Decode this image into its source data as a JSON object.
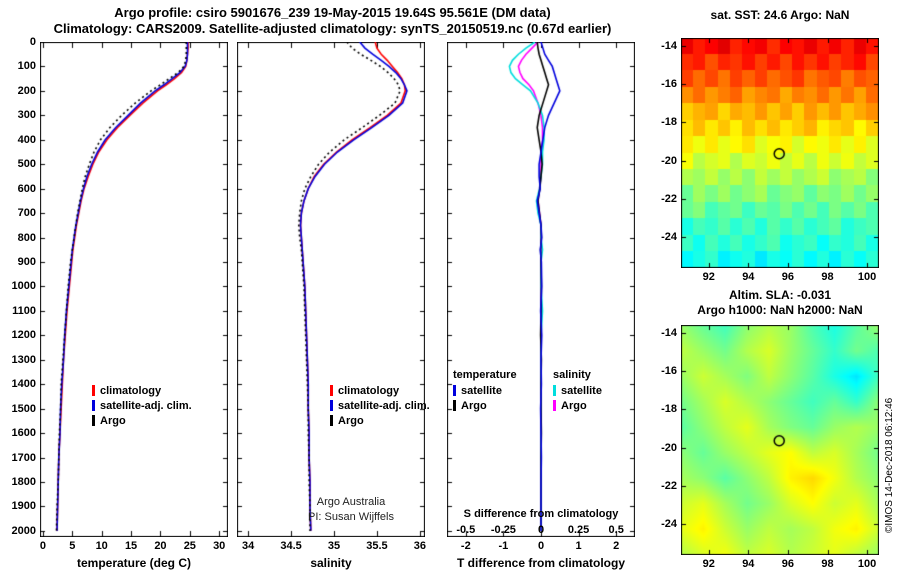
{
  "figure": {
    "title1": "Argo profile: csiro 5901676_239 19-May-2015 19.64S 95.561E (DM data)",
    "title2": "Climatology: CARS2009. Satellite-adjusted climatology: synTS_20150519.nc (0.67d earlier)",
    "copyright": "©IMOS 14-Dec-2018 06:12:46"
  },
  "colors": {
    "climatology": "#ff0000",
    "satellite": "#0000dd",
    "argo": "#000000",
    "salinity_satellite": "#00dddd",
    "salinity_argo": "#ff00ff"
  },
  "chart_data": [
    {
      "id": "temperature-profile",
      "type": "line",
      "xlabel": "temperature (deg C)",
      "xlim": [
        -0.5,
        31.5
      ],
      "xticks": [
        0,
        5,
        10,
        15,
        20,
        25,
        30
      ],
      "ylim": [
        0,
        2025
      ],
      "yticks": [
        0,
        100,
        200,
        300,
        400,
        500,
        600,
        700,
        800,
        900,
        1000,
        1100,
        1200,
        1300,
        1400,
        1500,
        1600,
        1700,
        1800,
        1900,
        2000
      ],
      "legend": [
        {
          "label": "climatology",
          "color": "#ff0000"
        },
        {
          "label": "satellite-adj. clim.",
          "color": "#0000dd"
        },
        {
          "label": "Argo",
          "color": "#000000"
        }
      ],
      "depths": [
        0,
        25,
        50,
        75,
        100,
        125,
        150,
        175,
        200,
        250,
        300,
        350,
        400,
        450,
        500,
        550,
        600,
        650,
        700,
        750,
        800,
        850,
        900,
        1000,
        1100,
        1200,
        1300,
        1400,
        1500,
        1600,
        1700,
        1800,
        1900,
        2000
      ],
      "series": [
        {
          "name": "climatology",
          "color": "#ff0000",
          "style": "solid",
          "values": [
            24.7,
            24.7,
            24.6,
            24.5,
            24.3,
            23.6,
            22.4,
            21.0,
            19.5,
            17.0,
            14.8,
            12.7,
            10.9,
            9.5,
            8.5,
            7.7,
            7.0,
            6.5,
            6.1,
            5.7,
            5.4,
            5.1,
            4.9,
            4.5,
            4.1,
            3.8,
            3.5,
            3.3,
            3.1,
            2.9,
            2.7,
            2.6,
            2.5,
            2.4
          ]
        },
        {
          "name": "satellite-adj. clim.",
          "color": "#0000dd",
          "style": "solid",
          "values": [
            24.6,
            24.6,
            24.6,
            24.5,
            24.2,
            23.3,
            22.0,
            20.6,
            19.1,
            16.6,
            14.5,
            12.4,
            10.6,
            9.3,
            8.3,
            7.5,
            6.9,
            6.4,
            6.0,
            5.6,
            5.3,
            5.0,
            4.8,
            4.4,
            4.0,
            3.7,
            3.5,
            3.2,
            3.0,
            2.9,
            2.7,
            2.6,
            2.5,
            2.4
          ]
        },
        {
          "name": "Argo",
          "color": "#000000",
          "style": "dotted",
          "values": [
            24.4,
            24.4,
            24.4,
            24.3,
            24.0,
            23.0,
            21.5,
            20.0,
            18.4,
            15.7,
            13.4,
            11.4,
            9.8,
            8.7,
            7.9,
            7.2,
            6.7,
            6.3,
            5.9,
            5.6,
            5.3,
            5.0,
            4.7,
            4.3,
            4.0,
            3.7,
            3.4,
            3.1,
            3.0,
            2.8,
            2.7,
            2.6,
            2.4,
            2.3
          ]
        }
      ]
    },
    {
      "id": "salinity-profile",
      "type": "line",
      "xlabel": "salinity",
      "xlim": [
        33.87,
        36.06
      ],
      "xticks": [
        34,
        34.5,
        35,
        35.5,
        36
      ],
      "ylim": [
        0,
        2025
      ],
      "yticks": [
        0,
        100,
        200,
        300,
        400,
        500,
        600,
        700,
        800,
        900,
        1000,
        1100,
        1200,
        1300,
        1400,
        1500,
        1600,
        1700,
        1800,
        1900,
        2000
      ],
      "note1": "Argo Australia",
      "note2": "PI: Susan Wijffels",
      "legend": [
        {
          "label": "climatology",
          "color": "#ff0000"
        },
        {
          "label": "satellite-adj. clim.",
          "color": "#0000dd"
        },
        {
          "label": "Argo",
          "color": "#000000"
        }
      ],
      "depths": [
        0,
        25,
        50,
        75,
        100,
        125,
        150,
        175,
        200,
        250,
        300,
        350,
        400,
        450,
        500,
        550,
        600,
        650,
        700,
        750,
        800,
        850,
        900,
        1000,
        1100,
        1200,
        1300,
        1400,
        1500,
        1600,
        1700,
        1800,
        1900,
        2000
      ],
      "series": [
        {
          "name": "climatology",
          "color": "#ff0000",
          "style": "solid",
          "values": [
            35.48,
            35.5,
            35.55,
            35.62,
            35.68,
            35.74,
            35.79,
            35.82,
            35.83,
            35.78,
            35.62,
            35.42,
            35.21,
            35.03,
            34.88,
            34.77,
            34.7,
            34.65,
            34.62,
            34.61,
            34.62,
            34.63,
            34.64,
            34.66,
            34.67,
            34.68,
            34.69,
            34.7,
            34.7,
            34.71,
            34.71,
            34.72,
            34.72,
            34.73
          ]
        },
        {
          "name": "satellite-adj. clim.",
          "color": "#0000dd",
          "style": "solid",
          "values": [
            35.3,
            35.36,
            35.45,
            35.55,
            35.64,
            35.72,
            35.78,
            35.82,
            35.85,
            35.8,
            35.64,
            35.44,
            35.23,
            35.04,
            34.89,
            34.78,
            34.7,
            34.65,
            34.62,
            34.61,
            34.62,
            34.63,
            34.64,
            34.66,
            34.67,
            34.68,
            34.69,
            34.7,
            34.7,
            34.71,
            34.71,
            34.72,
            34.72,
            34.73
          ]
        },
        {
          "name": "Argo",
          "color": "#000000",
          "style": "dotted",
          "values": [
            35.15,
            35.21,
            35.31,
            35.43,
            35.54,
            35.63,
            35.7,
            35.75,
            35.77,
            35.71,
            35.53,
            35.33,
            35.12,
            34.95,
            34.82,
            34.73,
            34.66,
            34.62,
            34.6,
            34.59,
            34.6,
            34.62,
            34.63,
            34.65,
            34.66,
            34.67,
            34.68,
            34.69,
            34.7,
            34.7,
            34.71,
            34.71,
            34.72,
            34.72
          ]
        }
      ]
    },
    {
      "id": "difference-profile",
      "type": "line",
      "xlabel": "T difference from climatology",
      "xlabel_top": "S difference from climatology",
      "xlim": [
        -2.5,
        2.5
      ],
      "xticks": [
        -2,
        -1,
        0,
        1,
        2
      ],
      "s_ticks": [
        "-0.5",
        "-0.25",
        "0",
        "0.25",
        "0.5"
      ],
      "s_scale_factor": 4,
      "ylim": [
        0,
        2025
      ],
      "yticks": [
        0,
        100,
        200,
        300,
        400,
        500,
        600,
        700,
        800,
        900,
        1000,
        1100,
        1200,
        1300,
        1400,
        1500,
        1600,
        1700,
        1800,
        1900,
        2000
      ],
      "legends": [
        {
          "title": "temperature",
          "entries": [
            {
              "label": "satellite",
              "color": "#0000dd"
            },
            {
              "label": "Argo",
              "color": "#000000"
            }
          ]
        },
        {
          "title": "salinity",
          "entries": [
            {
              "label": "satellite",
              "color": "#00dddd"
            },
            {
              "label": "Argo",
              "color": "#ff00ff"
            }
          ]
        }
      ],
      "depths": [
        0,
        25,
        50,
        75,
        100,
        125,
        150,
        175,
        200,
        250,
        300,
        350,
        400,
        450,
        500,
        550,
        600,
        650,
        700,
        750,
        800,
        850,
        900,
        1000,
        1100,
        1200,
        1300,
        1400,
        1500,
        1600,
        1700,
        1800,
        1900,
        2000
      ],
      "series": [
        {
          "name": "salinity Argo",
          "color": "#ff00ff",
          "style": "solid",
          "scale": "S",
          "values": [
            -0.02,
            -0.06,
            -0.1,
            -0.13,
            -0.15,
            -0.14,
            -0.12,
            -0.08,
            -0.05,
            -0.02,
            0.0,
            0.01,
            0.01,
            0.0,
            0.0,
            0.0,
            -0.01,
            -0.02,
            -0.01,
            0.0,
            0.0,
            0.0,
            0.0,
            0.0,
            0.0,
            0.0,
            0.0,
            0.0,
            0.0,
            0.0,
            0.0,
            0.0,
            0.0,
            0.0
          ]
        },
        {
          "name": "salinity satellite",
          "color": "#00dddd",
          "style": "solid",
          "scale": "S",
          "values": [
            -0.04,
            -0.1,
            -0.15,
            -0.19,
            -0.21,
            -0.2,
            -0.17,
            -0.12,
            -0.07,
            -0.02,
            0.01,
            0.02,
            0.02,
            0.01,
            0.01,
            0.0,
            -0.01,
            -0.03,
            -0.02,
            0.0,
            0.0,
            0.01,
            0.0,
            0.0,
            0.01,
            0.0,
            0.0,
            0.0,
            0.0,
            0.0,
            0.0,
            0.0,
            0.0,
            0.0
          ]
        },
        {
          "name": "temperature Argo",
          "color": "#000000",
          "style": "solid",
          "scale": "T",
          "values": [
            -0.1,
            -0.08,
            -0.05,
            0.0,
            0.05,
            0.1,
            0.15,
            0.2,
            0.15,
            0.05,
            -0.05,
            -0.1,
            -0.05,
            0.0,
            0.03,
            0.0,
            -0.03,
            -0.08,
            -0.04,
            0.0,
            0.01,
            -0.01,
            0.0,
            0.01,
            0.0,
            -0.01,
            0.01,
            0.0,
            0.0,
            0.01,
            0.0,
            0.0,
            0.0,
            0.0
          ]
        },
        {
          "name": "temperature satellite",
          "color": "#0000dd",
          "style": "solid",
          "scale": "T",
          "values": [
            0.0,
            0.05,
            0.1,
            0.2,
            0.3,
            0.35,
            0.4,
            0.45,
            0.5,
            0.35,
            0.2,
            0.1,
            0.05,
            0.0,
            -0.05,
            -0.05,
            -0.02,
            -0.1,
            -0.05,
            0.0,
            0.02,
            -0.02,
            0.01,
            0.02,
            -0.01,
            0.02,
            0.0,
            0.01,
            -0.01,
            0.0,
            0.01,
            0.0,
            0.0,
            0.0
          ]
        }
      ]
    },
    {
      "id": "sst-map",
      "type": "heatmap",
      "title": "sat. SST: 24.6 Argo: NaN",
      "render": "blocky",
      "xlim": [
        90.6,
        100.6
      ],
      "ylim": [
        -13.6,
        -25.6
      ],
      "xticks": [
        92,
        94,
        96,
        98,
        100
      ],
      "yticks": [
        -14,
        -16,
        -18,
        -20,
        -22,
        -24
      ],
      "vmin": 18.1,
      "vmax": 29.4,
      "marker": {
        "lon": 95.561,
        "lat": -19.64
      },
      "values": [
        [
          28.2,
          27.7,
          28.0,
          28.3,
          27.6,
          27.9,
          28.1,
          27.5,
          28.0,
          27.8,
          28.2,
          27.7,
          28.1,
          27.6,
          28.2,
          27.8
        ],
        [
          27.5,
          27.7,
          27.1,
          27.6,
          27.4,
          27.8,
          27.3,
          27.7,
          27.2,
          27.8,
          27.4,
          27.8,
          27.3,
          27.6,
          27.9,
          27.2
        ],
        [
          27.3,
          26.8,
          27.2,
          26.7,
          27.3,
          26.9,
          27.3,
          26.8,
          27.1,
          27.4,
          26.7,
          27.0,
          27.2,
          26.6,
          27.1,
          26.9
        ],
        [
          26.4,
          26.8,
          26.3,
          26.6,
          26.9,
          26.2,
          26.5,
          26.7,
          26.1,
          26.6,
          26.4,
          26.8,
          26.3,
          26.7,
          26.2,
          26.8
        ],
        [
          25.7,
          26.0,
          26.2,
          25.6,
          26.1,
          25.9,
          26.3,
          25.8,
          26.2,
          25.7,
          26.3,
          25.9,
          26.3,
          25.8,
          26.1,
          26.4
        ],
        [
          25.5,
          25.9,
          25.4,
          25.8,
          25.3,
          25.9,
          25.5,
          25.9,
          25.4,
          25.7,
          26.0,
          25.3,
          25.6,
          25.8,
          25.2,
          25.7
        ],
        [
          25.4,
          25.0,
          25.4,
          24.9,
          25.2,
          25.5,
          24.8,
          25.1,
          25.3,
          24.7,
          25.2,
          25.0,
          25.4,
          24.9,
          25.3,
          24.8
        ],
        [
          25.1,
          24.4,
          24.7,
          24.9,
          24.3,
          24.8,
          24.6,
          25.0,
          24.5,
          24.9,
          24.4,
          25.0,
          24.6,
          25.0,
          24.5,
          24.8
        ],
        [
          24.3,
          24.1,
          24.5,
          24.0,
          24.4,
          23.9,
          24.5,
          24.1,
          24.5,
          24.0,
          24.3,
          24.6,
          23.9,
          24.2,
          24.4,
          23.8
        ],
        [
          23.5,
          24.1,
          23.7,
          24.1,
          23.6,
          23.9,
          24.2,
          23.5,
          23.8,
          24.0,
          23.4,
          23.9,
          23.7,
          24.1,
          23.6,
          24.0
        ],
        [
          23.5,
          23.8,
          23.1,
          23.4,
          23.6,
          23.0,
          23.5,
          23.3,
          23.7,
          23.2,
          23.6,
          23.1,
          23.7,
          23.3,
          23.7,
          23.2
        ],
        [
          22.6,
          23.1,
          22.9,
          23.3,
          22.8,
          23.2,
          22.7,
          23.3,
          22.9,
          23.3,
          22.8,
          23.1,
          23.4,
          22.7,
          23.0,
          23.2
        ],
        [
          23.0,
          22.5,
          23.1,
          22.7,
          23.1,
          22.6,
          22.9,
          23.2,
          22.5,
          22.8,
          23.0,
          22.4,
          22.9,
          22.7,
          23.1,
          22.6
        ],
        [
          22.3,
          22.6,
          22.9,
          22.2,
          22.5,
          22.7,
          22.1,
          22.6,
          22.4,
          22.8,
          22.3,
          22.7,
          22.2,
          22.8,
          22.4,
          22.8
        ]
      ]
    },
    {
      "id": "sla-map",
      "type": "heatmap",
      "title1": "Altim. SLA: -0.031",
      "title2": "Argo h1000: NaN h2000: NaN",
      "render": "smooth",
      "xlim": [
        90.6,
        100.6
      ],
      "ylim": [
        -13.6,
        -25.6
      ],
      "xticks": [
        92,
        94,
        96,
        98,
        100
      ],
      "yticks": [
        -14,
        -16,
        -18,
        -20,
        -22,
        -24
      ],
      "vmin": -0.4,
      "vmax": 0.4,
      "marker": {
        "lon": 95.561,
        "lat": -19.64
      },
      "values": [
        [
          0.02,
          -0.02,
          -0.05,
          0.01,
          0.04,
          0.02,
          -0.04,
          -0.08,
          -0.03,
          0.02
        ],
        [
          0.05,
          0.02,
          -0.01,
          0.04,
          0.07,
          0.02,
          -0.02,
          -0.06,
          -0.01,
          -0.04
        ],
        [
          0.02,
          0.06,
          0.03,
          0.0,
          0.05,
          0.01,
          -0.03,
          -0.08,
          -0.12,
          -0.05
        ],
        [
          -0.01,
          0.03,
          0.07,
          0.04,
          0.01,
          -0.02,
          -0.05,
          -0.02,
          -0.06,
          0.01
        ],
        [
          -0.03,
          0.01,
          0.05,
          0.08,
          0.03,
          0.0,
          -0.02,
          0.02,
          0.04,
          0.02
        ],
        [
          0.01,
          -0.02,
          0.02,
          0.05,
          0.08,
          0.1,
          0.05,
          0.07,
          0.03,
          -0.01
        ],
        [
          0.03,
          0.01,
          -0.03,
          0.01,
          0.05,
          0.11,
          0.13,
          0.09,
          0.04,
          0.01
        ],
        [
          0.06,
          0.08,
          0.03,
          -0.01,
          0.02,
          0.07,
          0.1,
          0.06,
          0.08,
          0.03
        ],
        [
          0.08,
          0.11,
          0.06,
          0.02,
          0.05,
          0.03,
          0.05,
          0.09,
          0.11,
          0.06
        ],
        [
          0.04,
          0.07,
          0.09,
          0.05,
          0.07,
          0.04,
          0.06,
          0.08,
          0.05,
          0.02
        ]
      ]
    }
  ]
}
